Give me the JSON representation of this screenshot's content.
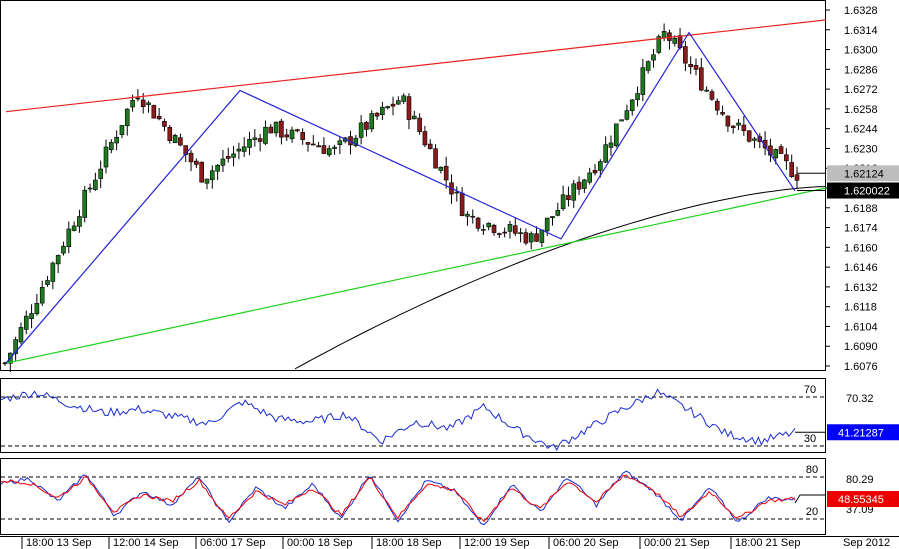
{
  "chart_data": [
    {
      "type": "candlestick",
      "title": "",
      "price_axis": {
        "ticks": [
          "1.6328",
          "1.6314",
          "1.6300",
          "1.6286",
          "1.6272",
          "1.6258",
          "1.6244",
          "1.6230",
          "1.6216",
          "1.6202",
          "1.6188",
          "1.6174",
          "1.6160",
          "1.6146",
          "1.6132",
          "1.6118",
          "1.6104",
          "1.6090",
          "1.6076"
        ],
        "range": [
          1.6076,
          1.6328
        ]
      },
      "time_axis": {
        "ticks": [
          "18:00 13 Sep",
          "12:00 14 Sep",
          "06:00 17 Sep",
          "00:00 18 Sep",
          "18:00 18 Sep",
          "12:00 19 Sep",
          "06:00 20 Sep",
          "00:00 21 Sep",
          "18:00 21 Sep"
        ],
        "end_label": "Sep 2012"
      },
      "markers": [
        {
          "label": "1.62124",
          "value": 1.62124,
          "color": "#bdbdbd"
        },
        {
          "label": "1.620022",
          "value": 1.620022,
          "color": "#000000"
        }
      ],
      "anchors": [
        1.6078,
        1.6175,
        1.6271,
        1.621,
        1.6245,
        1.6228,
        1.6266,
        1.6182,
        1.6166,
        1.6222,
        1.6312,
        1.6248,
        1.6212
      ],
      "zigzag": [
        1.6078,
        1.6271,
        1.6166,
        1.6312,
        1.62
      ],
      "resistance_line": {
        "start": 1.6256,
        "end": 1.6321,
        "color": "#e8211f"
      },
      "support_line": {
        "start": 1.6078,
        "end": 1.6202,
        "color": "#19d119"
      },
      "moving_average": {
        "start": 1.6074,
        "end": 1.6203,
        "color": "#000000"
      },
      "zigzag_color": "#2222dd"
    },
    {
      "type": "line",
      "indicator": "rsi",
      "levels": [
        70,
        30
      ],
      "level_labels": [
        "70",
        "30"
      ],
      "top_label": "70.32",
      "current": {
        "label": "41.21287",
        "value": 41.21287,
        "color": "#0000ff"
      },
      "color": "#1a2bd4",
      "anchors": [
        68,
        74,
        64,
        57,
        60,
        54,
        48,
        66,
        52,
        50,
        56,
        34,
        50,
        44,
        62,
        42,
        28,
        44,
        60,
        74,
        58,
        40,
        34,
        41
      ]
    },
    {
      "type": "line",
      "indicator": "stochastic",
      "levels": [
        80,
        20
      ],
      "level_labels": [
        "80",
        "20"
      ],
      "top_label": "80.29",
      "bottom_label": "37.09",
      "current": {
        "label": "48.55345",
        "value": 48.55345,
        "color": "#ee0000"
      },
      "series": [
        {
          "color": "#1a2bd4",
          "anchors": [
            70,
            78,
            45,
            85,
            25,
            60,
            40,
            80,
            15,
            65,
            35,
            70,
            20,
            85,
            18,
            75,
            60,
            10,
            70,
            30,
            80,
            40,
            88,
            60,
            18,
            65,
            15,
            50,
            48
          ]
        },
        {
          "color": "#ee0000",
          "anchors": [
            75,
            72,
            50,
            80,
            30,
            55,
            45,
            75,
            20,
            60,
            40,
            65,
            25,
            80,
            22,
            70,
            62,
            15,
            65,
            34,
            75,
            44,
            84,
            62,
            22,
            60,
            20,
            46,
            49
          ]
        }
      ]
    }
  ]
}
